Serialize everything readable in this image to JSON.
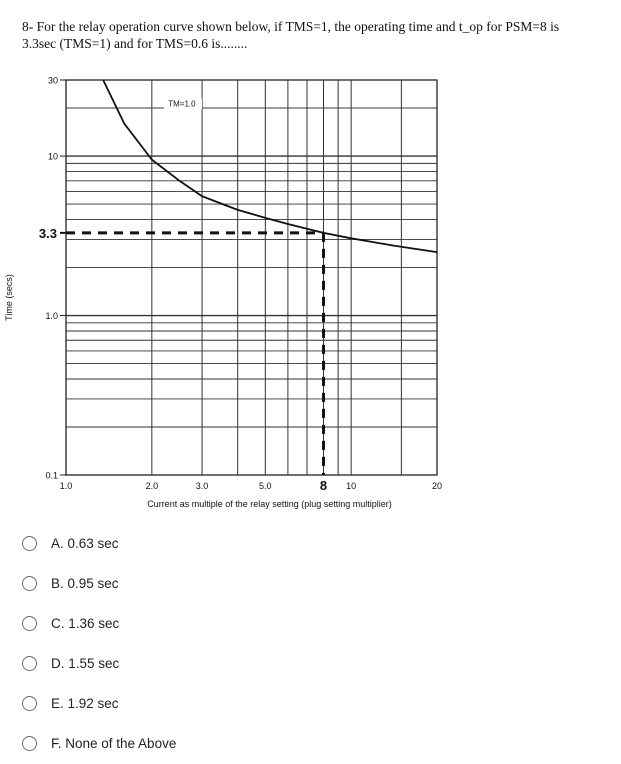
{
  "question": {
    "line1": "8- For the relay operation curve shown below, if TMS=1, the operating time and t_op for PSM=8 is",
    "line2": "3.3sec (TMS=1) and for TMS=0.6 is........"
  },
  "chart_data": {
    "type": "line",
    "title": "",
    "xlabel": "Current as multiple of the relay setting (plug setting multiplier)",
    "ylabel": "Time (secs)",
    "xscale": "log",
    "yscale": "log",
    "xlim": [
      1,
      20
    ],
    "ylim": [
      0.1,
      30
    ],
    "grid": true,
    "x_ticks": [
      "1.0",
      "2.0",
      "3.0",
      "5.0",
      "10",
      "20"
    ],
    "y_ticks": [
      "30",
      "10",
      "1.0",
      "0.1"
    ],
    "series": [
      {
        "name": "TM=1.0",
        "x": [
          1.35,
          1.6,
          2.0,
          2.5,
          3.0,
          4.0,
          5.0,
          6.0,
          8.0,
          10.0,
          14.0,
          20.0
        ],
        "y": [
          30,
          16,
          9.5,
          7.0,
          5.6,
          4.6,
          4.1,
          3.75,
          3.3,
          3.05,
          2.75,
          2.5
        ]
      }
    ],
    "annotations": [
      {
        "text": "3.3",
        "axis": "y",
        "value": 3.3,
        "style": "dashed"
      },
      {
        "text": "8",
        "axis": "x",
        "value": 8,
        "style": "dashed"
      }
    ]
  },
  "options": [
    {
      "label": "A. 0.63 sec"
    },
    {
      "label": "B. 0.95 sec"
    },
    {
      "label": "C. 1.36 sec"
    },
    {
      "label": "D. 1.55 sec"
    },
    {
      "label": "E. 1.92 sec"
    },
    {
      "label": "F. None of the Above"
    }
  ]
}
